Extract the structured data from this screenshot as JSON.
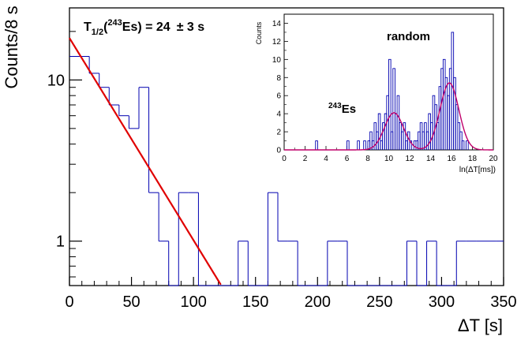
{
  "chart_data": [
    {
      "type": "histogram",
      "role": "main",
      "title": "",
      "xlabel": "ΔT [s]",
      "ylabel": "Counts/8 s",
      "xlim": [
        0,
        350
      ],
      "ylim": [
        0.53,
        28
      ],
      "y_scale": "log",
      "bin_width": 8,
      "x_ticks": [
        0,
        50,
        100,
        150,
        200,
        250,
        300,
        350
      ],
      "x_tick_labels": [
        "0",
        "50",
        "100",
        "150",
        "200",
        "250",
        "300",
        "350"
      ],
      "y_ticks": [
        1,
        10
      ],
      "y_tick_labels": [
        "1",
        "10"
      ],
      "bin_edges": [
        0,
        8,
        16,
        24,
        32,
        40,
        48,
        56,
        64,
        72,
        80,
        88,
        96,
        104,
        112,
        120,
        128,
        136,
        144,
        152,
        160,
        168,
        176,
        184,
        192,
        200,
        208,
        216,
        224,
        232,
        240,
        248,
        256,
        264,
        272,
        280,
        288,
        296,
        304,
        312,
        320,
        328,
        336,
        344,
        350
      ],
      "counts": [
        14,
        14,
        11,
        9,
        7,
        6,
        5,
        9,
        2,
        1,
        0,
        2,
        2,
        0,
        0,
        0,
        0,
        1,
        0,
        0,
        2,
        1,
        1,
        0,
        0,
        0,
        1,
        1,
        0,
        0,
        0,
        0,
        0,
        0,
        1,
        0,
        1,
        0,
        0,
        1,
        1,
        1,
        1,
        1
      ],
      "annotation": {
        "prefix": "T",
        "subscript": "1/2",
        "open": "(",
        "superscript": "243",
        "isotope": "Es) = 24",
        "uncertainty": "± 3 s"
      },
      "fit": {
        "name": "exponential decay",
        "amplitude": 18.2,
        "half_life_s": 24,
        "x_range": [
          0,
          148
        ],
        "color": "#e00000"
      },
      "hist_color": "#0000b0"
    },
    {
      "type": "histogram",
      "role": "inset",
      "title": "",
      "xlabel": "ln(ΔT[ms])",
      "ylabel": "Counts",
      "xlim": [
        0,
        20
      ],
      "ylim": [
        0,
        15
      ],
      "bin_width": 0.2,
      "x_ticks": [
        0,
        2,
        4,
        6,
        8,
        10,
        12,
        14,
        16,
        18,
        20
      ],
      "x_tick_labels": [
        "0",
        "2",
        "4",
        "6",
        "8",
        "10",
        "12",
        "14",
        "16",
        "18",
        "20"
      ],
      "y_ticks": [
        0,
        2,
        4,
        6,
        8,
        10,
        12,
        14
      ],
      "y_tick_labels": [
        "0",
        "2",
        "4",
        "6",
        "8",
        "10",
        "12",
        "14"
      ],
      "bins": [
        {
          "x": 3.0,
          "y": 1
        },
        {
          "x": 6.0,
          "y": 1
        },
        {
          "x": 7.0,
          "y": 1
        },
        {
          "x": 7.6,
          "y": 1
        },
        {
          "x": 8.0,
          "y": 1
        },
        {
          "x": 8.2,
          "y": 2
        },
        {
          "x": 8.4,
          "y": 1
        },
        {
          "x": 8.6,
          "y": 3
        },
        {
          "x": 8.8,
          "y": 2
        },
        {
          "x": 9.0,
          "y": 4
        },
        {
          "x": 9.2,
          "y": 1
        },
        {
          "x": 9.4,
          "y": 3
        },
        {
          "x": 9.6,
          "y": 4
        },
        {
          "x": 9.8,
          "y": 6
        },
        {
          "x": 10.0,
          "y": 10
        },
        {
          "x": 10.2,
          "y": 2
        },
        {
          "x": 10.4,
          "y": 9
        },
        {
          "x": 10.6,
          "y": 4
        },
        {
          "x": 10.8,
          "y": 6
        },
        {
          "x": 11.0,
          "y": 3
        },
        {
          "x": 11.2,
          "y": 2
        },
        {
          "x": 11.4,
          "y": 3
        },
        {
          "x": 11.6,
          "y": 1
        },
        {
          "x": 11.8,
          "y": 2
        },
        {
          "x": 12.0,
          "y": 1
        },
        {
          "x": 12.4,
          "y": 1
        },
        {
          "x": 12.6,
          "y": 1
        },
        {
          "x": 12.8,
          "y": 2
        },
        {
          "x": 13.0,
          "y": 3
        },
        {
          "x": 13.2,
          "y": 2
        },
        {
          "x": 13.4,
          "y": 3
        },
        {
          "x": 13.6,
          "y": 2
        },
        {
          "x": 13.8,
          "y": 4
        },
        {
          "x": 14.0,
          "y": 3
        },
        {
          "x": 14.2,
          "y": 6
        },
        {
          "x": 14.4,
          "y": 5
        },
        {
          "x": 14.6,
          "y": 3
        },
        {
          "x": 14.8,
          "y": 7
        },
        {
          "x": 15.0,
          "y": 9
        },
        {
          "x": 15.2,
          "y": 10
        },
        {
          "x": 15.4,
          "y": 8
        },
        {
          "x": 15.6,
          "y": 6
        },
        {
          "x": 15.8,
          "y": 9
        },
        {
          "x": 16.0,
          "y": 13
        },
        {
          "x": 16.2,
          "y": 8
        },
        {
          "x": 16.4,
          "y": 5
        },
        {
          "x": 16.6,
          "y": 3
        },
        {
          "x": 16.8,
          "y": 2
        },
        {
          "x": 17.0,
          "y": 1
        },
        {
          "x": 17.4,
          "y": 1
        }
      ],
      "fit_peaks": [
        {
          "label_superscript": "243",
          "label_text": "Es",
          "mean": 10.5,
          "sigma": 0.9,
          "amplitude": 4.1
        },
        {
          "label": "random",
          "mean": 15.8,
          "sigma": 0.9,
          "amplitude": 7.4
        }
      ],
      "fit_color": "#c0006a",
      "hist_color": "#0000b0"
    }
  ]
}
